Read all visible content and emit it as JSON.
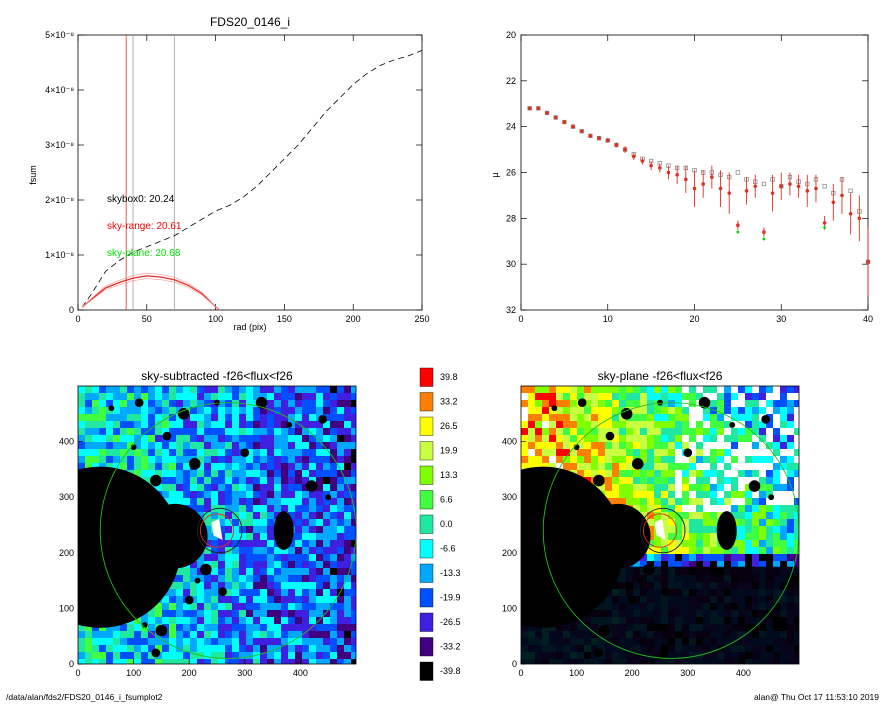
{
  "footer": {
    "path": "/data/alan/fds2/FDS20_0146_i_fsumplot2",
    "stamp": "alan@  Thu Oct 17 11:53:10 2019"
  },
  "chart_data": [
    {
      "type": "line",
      "title": "FDS20_0146_i",
      "xlabel": "rad (pix)",
      "ylabel": "fsum",
      "xlim": [
        0,
        250
      ],
      "ylim": [
        0,
        5e-08
      ],
      "x_ticks": [
        "0",
        "50",
        "100",
        "150",
        "200",
        "250"
      ],
      "y_ticks": [
        "0",
        "1×10⁻⁸",
        "2×10⁻⁸",
        "3×10⁻⁸",
        "4×10⁻⁸",
        "5×10⁻⁸"
      ],
      "y_tick_values": [
        0,
        1e-08,
        2e-08,
        3e-08,
        4e-08,
        5e-08
      ],
      "vertical_markers": [
        {
          "x": 35,
          "color": "#e03020"
        },
        {
          "x": 40,
          "color": "#a0a0a0"
        },
        {
          "x": 70,
          "color": "#a0a0a0"
        }
      ],
      "annotations": [
        {
          "text": "skybox0: 20.24",
          "color": "#000000"
        },
        {
          "text": "sky-range: 20.61",
          "color": "#ff0000"
        },
        {
          "text": "sky-plane: 20.68",
          "color": "#00dd00"
        }
      ],
      "series": [
        {
          "style": "dashed",
          "color": "#000000",
          "x": [
            3,
            10,
            20,
            30,
            40,
            50,
            60,
            70,
            80,
            90,
            100,
            110,
            120,
            130,
            140,
            150,
            160,
            170,
            180,
            190,
            200,
            210,
            220,
            230,
            240,
            250
          ],
          "y": [
            5e-10,
            3e-09,
            7e-09,
            9e-09,
            1.05e-08,
            1.15e-08,
            1.25e-08,
            1.35e-08,
            1.5e-08,
            1.65e-08,
            1.8e-08,
            1.9e-08,
            2.05e-08,
            2.25e-08,
            2.5e-08,
            2.75e-08,
            3e-08,
            3.3e-08,
            3.6e-08,
            3.85e-08,
            4.1e-08,
            4.3e-08,
            4.45e-08,
            4.55e-08,
            4.62e-08,
            4.72e-08
          ]
        },
        {
          "style": "solid",
          "color": "#e03020",
          "x": [
            3,
            10,
            20,
            30,
            40,
            50,
            60,
            70,
            80,
            90,
            95,
            100,
            103
          ],
          "y": [
            5e-10,
            2e-09,
            4e-09,
            5e-09,
            5.8e-09,
            6.2e-09,
            6e-09,
            5.5e-09,
            4.5e-09,
            3e-09,
            1.8e-09,
            6e-10,
            0.0
          ]
        }
      ]
    },
    {
      "type": "scatter",
      "title": "",
      "xlabel": "",
      "ylabel": "µ",
      "xlim": [
        0,
        40
      ],
      "ylim": [
        32,
        20
      ],
      "x_ticks": [
        "0",
        "10",
        "20",
        "30",
        "40"
      ],
      "y_ticks": [
        "20",
        "22",
        "24",
        "26",
        "28",
        "30",
        "32"
      ],
      "series": [
        {
          "marker": "open-square",
          "color": "#808080",
          "x": [
            1,
            2,
            3,
            4,
            5,
            6,
            7,
            8,
            9,
            10,
            11,
            12,
            13,
            14,
            15,
            16,
            17,
            18,
            19,
            20,
            21,
            22,
            23,
            24,
            25,
            26,
            27,
            28,
            29,
            30,
            31,
            32,
            33,
            34,
            35,
            36,
            37,
            38,
            39,
            40
          ],
          "y": [
            23.2,
            23.2,
            23.4,
            23.6,
            23.8,
            24.0,
            24.2,
            24.4,
            24.5,
            24.6,
            24.8,
            25.0,
            25.2,
            25.4,
            25.5,
            25.6,
            25.7,
            25.8,
            25.8,
            25.9,
            26.0,
            26.0,
            26.1,
            26.2,
            26.0,
            26.3,
            26.4,
            26.5,
            26.3,
            26.6,
            26.2,
            26.4,
            26.5,
            26.3,
            26.6,
            26.9,
            26.3,
            26.8,
            27.7,
            29.9
          ]
        },
        {
          "marker": "filled-dot-errorbar",
          "color": "#e03020",
          "x": [
            1,
            2,
            3,
            4,
            5,
            6,
            7,
            8,
            9,
            10,
            11,
            12,
            13,
            14,
            15,
            16,
            17,
            18,
            19,
            20,
            21,
            22,
            23,
            24,
            25,
            26,
            27,
            28,
            29,
            30,
            31,
            32,
            33,
            34,
            35,
            36,
            37,
            38,
            39,
            40
          ],
          "y": [
            23.2,
            23.2,
            23.4,
            23.6,
            23.8,
            24.0,
            24.2,
            24.4,
            24.5,
            24.6,
            24.8,
            25.0,
            25.3,
            25.5,
            25.7,
            25.8,
            26.0,
            26.1,
            26.3,
            26.7,
            26.5,
            26.2,
            26.7,
            26.9,
            28.3,
            26.8,
            26.6,
            28.6,
            26.9,
            26.6,
            26.5,
            26.6,
            26.8,
            26.7,
            28.2,
            27.3,
            27.0,
            27.8,
            28.0,
            29.9
          ],
          "err": [
            0.05,
            0.05,
            0.05,
            0.05,
            0.05,
            0.05,
            0.05,
            0.05,
            0.1,
            0.1,
            0.1,
            0.15,
            0.15,
            0.15,
            0.2,
            0.2,
            0.3,
            0.4,
            0.6,
            0.8,
            0.6,
            0.5,
            0.8,
            0.9,
            0.2,
            0.6,
            0.5,
            0.2,
            0.8,
            0.6,
            0.5,
            0.5,
            0.7,
            0.6,
            0.3,
            0.8,
            0.8,
            0.9,
            1.0,
            1.5
          ]
        },
        {
          "marker": "small-dot",
          "color": "#00dd00",
          "x": [
            25,
            28,
            35
          ],
          "y": [
            28.6,
            28.9,
            28.4
          ]
        }
      ]
    },
    {
      "type": "heatmap",
      "title": "sky-subtracted -f26<flux<f26",
      "xlim": [
        0,
        500
      ],
      "ylim": [
        0,
        500
      ],
      "x_ticks": [
        "0",
        "100",
        "200",
        "300",
        "400"
      ],
      "y_ticks": [
        "0",
        "100",
        "200",
        "300",
        "400"
      ],
      "masks": [
        {
          "cx": 40,
          "cy": 210,
          "r": 145
        },
        {
          "cx": 175,
          "cy": 230,
          "r": 58
        },
        {
          "cx": 370,
          "cy": 240,
          "rx": 18,
          "ry": 35
        }
      ],
      "circles": [
        {
          "cx": 250,
          "cy": 240,
          "r": 30,
          "color": "#e03020"
        },
        {
          "cx": 255,
          "cy": 240,
          "r": 40,
          "color": "#202020"
        },
        {
          "cx": 270,
          "cy": 240,
          "r": 230,
          "color": "#20c020"
        }
      ]
    },
    {
      "type": "heatmap",
      "title": "sky-plane -f26<flux<f26",
      "xlim": [
        0,
        500
      ],
      "ylim": [
        0,
        500
      ],
      "x_ticks": [
        "0",
        "100",
        "200",
        "300",
        "400"
      ],
      "y_ticks": [
        "0",
        "100",
        "200",
        "300",
        "400"
      ],
      "masks": [
        {
          "cx": 40,
          "cy": 210,
          "r": 145
        },
        {
          "cx": 175,
          "cy": 230,
          "r": 58
        },
        {
          "cx": 370,
          "cy": 240,
          "rx": 18,
          "ry": 35
        }
      ],
      "circles": [
        {
          "cx": 250,
          "cy": 240,
          "r": 30,
          "color": "#e03020"
        },
        {
          "cx": 255,
          "cy": 240,
          "r": 40,
          "color": "#202020"
        },
        {
          "cx": 270,
          "cy": 240,
          "r": 230,
          "color": "#20c020"
        }
      ]
    }
  ],
  "colorbar": {
    "labels": [
      "39.8",
      "33.2",
      "26.5",
      "19.9",
      "13.3",
      "6.6",
      "0.0",
      "-6.6",
      "-13.3",
      "-19.9",
      "-26.5",
      "-33.2",
      "-39.8"
    ],
    "colors": [
      "#ff0000",
      "#ff8000",
      "#ffff00",
      "#c8ff40",
      "#80ff00",
      "#40ff40",
      "#20e8a0",
      "#00ffff",
      "#00a8ff",
      "#0050ff",
      "#4020e0",
      "#400080",
      "#000000"
    ]
  }
}
